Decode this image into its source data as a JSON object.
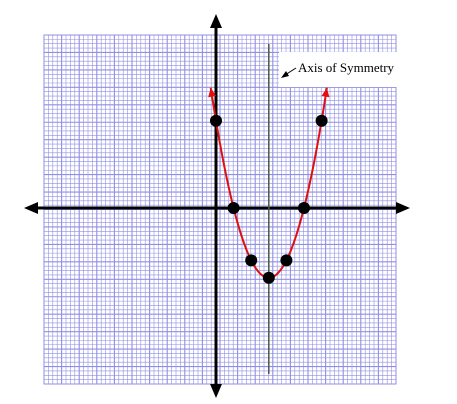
{
  "chart_data": {
    "type": "line",
    "title": "",
    "xlabel": "",
    "ylabel": "",
    "xlim": [
      -10,
      10
    ],
    "ylim": [
      -10,
      10
    ],
    "grid": true,
    "equation": "y = (x - 3)^2 - 4",
    "curve": {
      "vertex": [
        3,
        -4
      ],
      "a": 1,
      "x_range": [
        -0.3,
        6.3
      ]
    },
    "points": [
      {
        "x": 0,
        "y": 5
      },
      {
        "x": 1,
        "y": 0
      },
      {
        "x": 2,
        "y": -3
      },
      {
        "x": 3,
        "y": -4
      },
      {
        "x": 4,
        "y": -3
      },
      {
        "x": 5,
        "y": 0
      },
      {
        "x": 6,
        "y": 5
      }
    ],
    "axis_of_symmetry": {
      "x": 3,
      "label": "Axis of Symmetry"
    }
  },
  "colors": {
    "grid": "#8f8fe6",
    "axes": "#000000",
    "curve": "#e01010",
    "points": "#000000",
    "symmetry_line": "#4a5a4a"
  }
}
